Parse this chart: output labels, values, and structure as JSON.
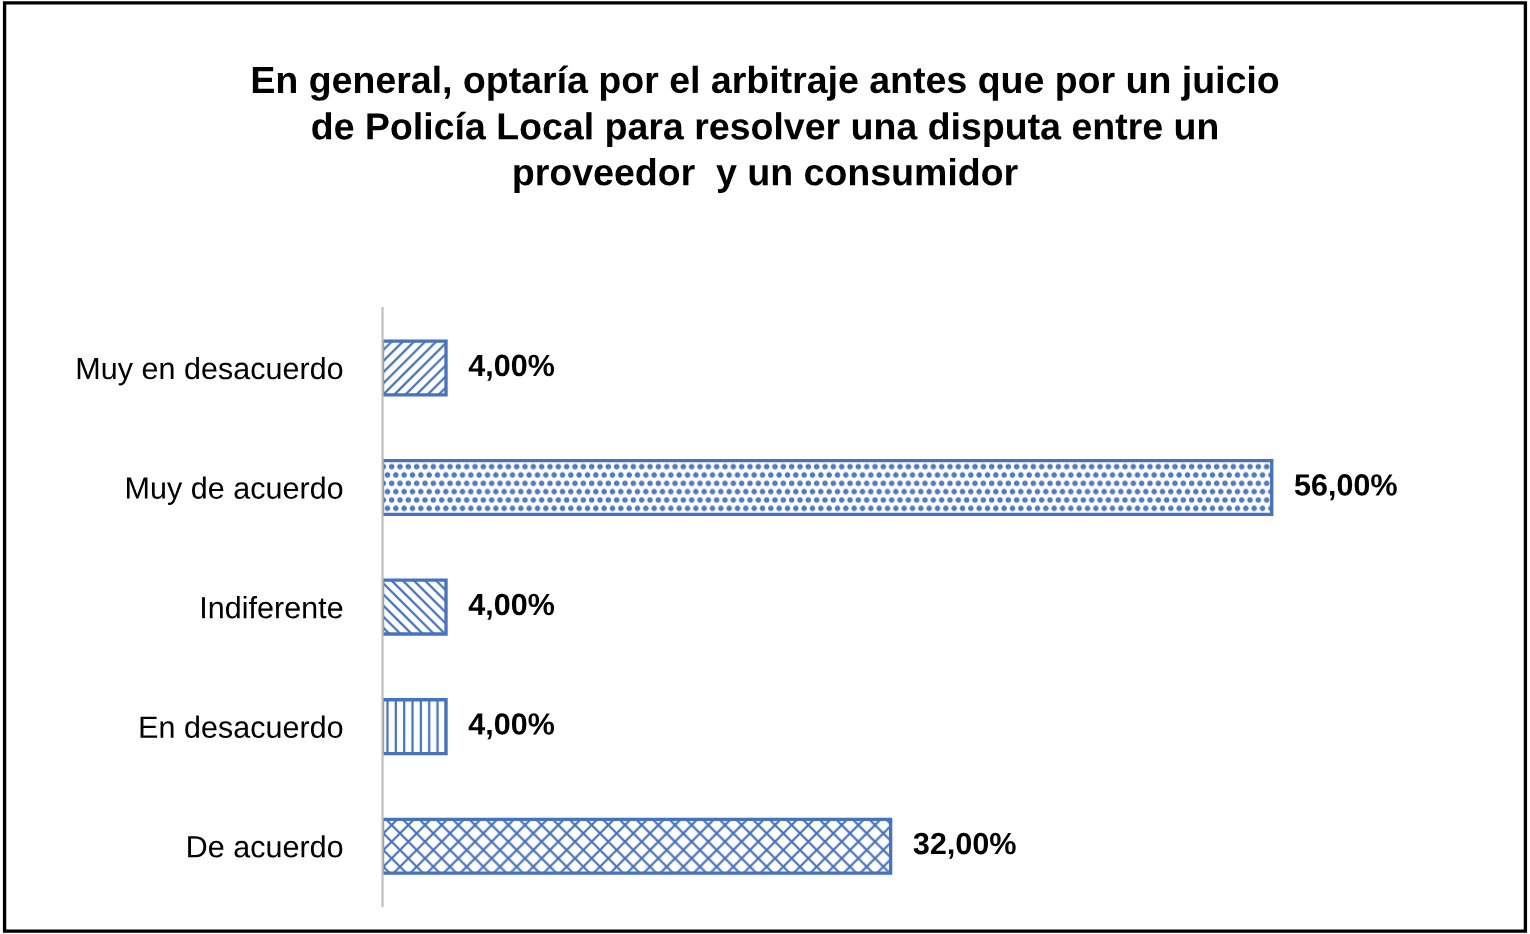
{
  "chart_data": {
    "type": "bar",
    "orientation": "horizontal",
    "title": "En general, optaría por el arbitraje antes que por un juicio\nde Policía Local para resolver una disputa entre un\nproveedor  y un consumidor",
    "categories": [
      "Muy en desacuerdo",
      "Muy de acuerdo",
      "Indiferente",
      "En desacuerdo",
      "De acuerdo"
    ],
    "values": [
      4,
      56,
      4,
      4,
      32
    ],
    "value_labels": [
      "4,00%",
      "56,00%",
      "4,00%",
      "4,00%",
      "32,00%"
    ],
    "color": "#4472c4",
    "grid": false,
    "legend": false
  }
}
